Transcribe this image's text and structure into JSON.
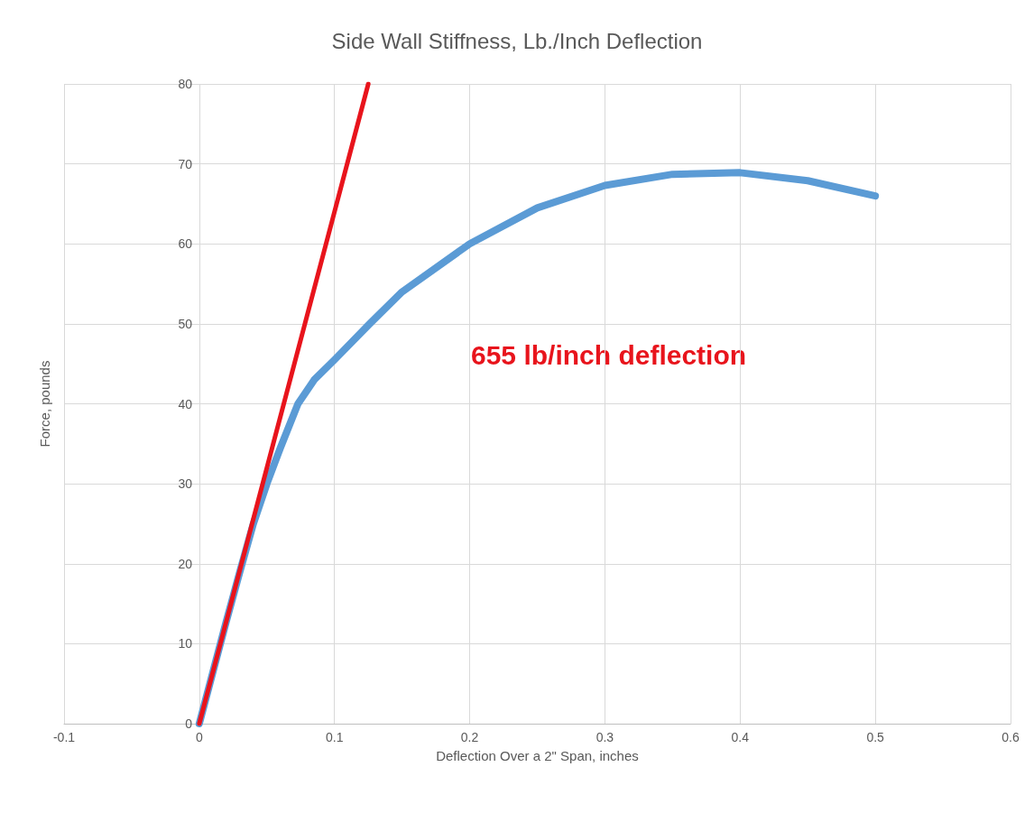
{
  "chart_data": {
    "type": "line",
    "title": "Side Wall Stiffness, Lb./Inch Deflection",
    "xlabel": "Deflection Over a 2\" Span, inches",
    "ylabel": "Force, pounds",
    "series": [
      {
        "color": "#5b9bd5",
        "x": [
          0,
          0.01,
          0.02,
          0.03,
          0.04,
          0.05,
          0.06,
          0.073,
          0.085,
          0.1,
          0.126,
          0.15,
          0.2,
          0.25,
          0.3,
          0.35,
          0.4,
          0.45,
          0.5
        ],
        "values": [
          0,
          6.4,
          12.8,
          19,
          25,
          30,
          34.5,
          40,
          43,
          45.5,
          50,
          54,
          60,
          64.5,
          67.3,
          68.7,
          68.9,
          67.9,
          66
        ]
      },
      {
        "color": "#e8141c",
        "x": [
          0,
          0.125
        ],
        "values": [
          0,
          80
        ]
      }
    ],
    "xlim": [
      -0.1,
      0.6
    ],
    "xticks": [
      -0.1,
      0,
      0.1,
      0.2,
      0.3,
      0.4,
      0.5,
      0.6
    ],
    "ylim": [
      0,
      80
    ],
    "yticks": [
      0,
      10,
      20,
      30,
      40,
      50,
      60,
      70,
      80
    ],
    "grid": true,
    "marker": "none",
    "line_style": "solid",
    "annotations": [
      "655 lb/inch deflection"
    ]
  }
}
